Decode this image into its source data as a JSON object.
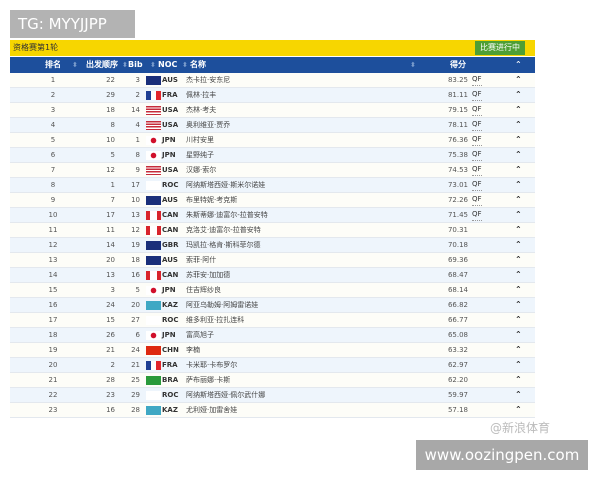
{
  "overlay": {
    "tg_label": "TG: MYYJJPP",
    "site_label": "www.oozingpen.com",
    "weibo_watermark": "@新浪体育"
  },
  "topbar": {
    "title": "资格赛第1轮",
    "status_button": "比赛进行中"
  },
  "columns": {
    "rank": "排名",
    "order": "出发顺序",
    "bib": "Bib",
    "noc": "NOC",
    "name": "名称",
    "score": "得分"
  },
  "colors": {
    "header_blue": "#1d4f9c",
    "top_yellow": "#f7d600",
    "status_green": "#4e9f34"
  },
  "rows": [
    {
      "rank": "1",
      "order": "22",
      "bib": "3",
      "noc": "AUS",
      "name": "杰卡拉·安东尼",
      "score": "83.25",
      "q": "QF"
    },
    {
      "rank": "2",
      "order": "29",
      "bib": "2",
      "noc": "FRA",
      "name": "佩林·拉丰",
      "score": "81.11",
      "q": "QF"
    },
    {
      "rank": "3",
      "order": "18",
      "bib": "14",
      "noc": "USA",
      "name": "杰林·考夫",
      "score": "79.15",
      "q": "QF"
    },
    {
      "rank": "4",
      "order": "8",
      "bib": "4",
      "noc": "USA",
      "name": "奥利维亚·贾乔",
      "score": "78.11",
      "q": "QF"
    },
    {
      "rank": "5",
      "order": "10",
      "bib": "1",
      "noc": "JPN",
      "name": "川村安里",
      "score": "76.36",
      "q": "QF"
    },
    {
      "rank": "6",
      "order": "5",
      "bib": "8",
      "noc": "JPN",
      "name": "星野纯子",
      "score": "75.38",
      "q": "QF"
    },
    {
      "rank": "7",
      "order": "12",
      "bib": "9",
      "noc": "USA",
      "name": "汉娜·索尔",
      "score": "74.53",
      "q": "QF"
    },
    {
      "rank": "8",
      "order": "1",
      "bib": "17",
      "noc": "ROC",
      "name": "阿纳斯塔西娅·斯米尔诺娃",
      "score": "73.01",
      "q": "QF"
    },
    {
      "rank": "9",
      "order": "7",
      "bib": "10",
      "noc": "AUS",
      "name": "布里特妮·考克斯",
      "score": "72.26",
      "q": "QF"
    },
    {
      "rank": "10",
      "order": "17",
      "bib": "13",
      "noc": "CAN",
      "name": "朱斯蒂娜·迪富尔-拉普安特",
      "score": "71.45",
      "q": "QF"
    },
    {
      "rank": "11",
      "order": "11",
      "bib": "12",
      "noc": "CAN",
      "name": "克洛艾·迪富尔-拉普安特",
      "score": "70.31",
      "q": ""
    },
    {
      "rank": "12",
      "order": "14",
      "bib": "19",
      "noc": "GBR",
      "name": "玛凯拉·格肯·斯科菲尔德",
      "score": "70.18",
      "q": ""
    },
    {
      "rank": "13",
      "order": "20",
      "bib": "18",
      "noc": "AUS",
      "name": "索菲·阿什",
      "score": "69.36",
      "q": ""
    },
    {
      "rank": "14",
      "order": "13",
      "bib": "16",
      "noc": "CAN",
      "name": "苏菲安·加加德",
      "score": "68.47",
      "q": ""
    },
    {
      "rank": "15",
      "order": "3",
      "bib": "5",
      "noc": "JPN",
      "name": "住吉辉纱良",
      "score": "68.14",
      "q": ""
    },
    {
      "rank": "16",
      "order": "24",
      "bib": "20",
      "noc": "KAZ",
      "name": "阿亚乌勒姆·阿姆雷诺娃",
      "score": "66.82",
      "q": ""
    },
    {
      "rank": "17",
      "order": "15",
      "bib": "27",
      "noc": "ROC",
      "name": "维多利亚·拉扎连科",
      "score": "66.77",
      "q": ""
    },
    {
      "rank": "18",
      "order": "26",
      "bib": "6",
      "noc": "JPN",
      "name": "富高旭子",
      "score": "65.08",
      "q": ""
    },
    {
      "rank": "19",
      "order": "21",
      "bib": "24",
      "noc": "CHN",
      "name": "李楠",
      "score": "63.32",
      "q": ""
    },
    {
      "rank": "20",
      "order": "2",
      "bib": "21",
      "noc": "FRA",
      "name": "卡米耶·卡布罗尔",
      "score": "62.97",
      "q": ""
    },
    {
      "rank": "21",
      "order": "28",
      "bib": "25",
      "noc": "BRA",
      "name": "萨布丽娜·卡斯",
      "score": "62.20",
      "q": ""
    },
    {
      "rank": "22",
      "order": "23",
      "bib": "29",
      "noc": "ROC",
      "name": "阿纳斯塔西娅·佩尔武什娜",
      "score": "59.97",
      "q": ""
    },
    {
      "rank": "23",
      "order": "16",
      "bib": "28",
      "noc": "KAZ",
      "name": "尤利娅·加雷舍娃",
      "score": "57.18",
      "q": ""
    }
  ]
}
